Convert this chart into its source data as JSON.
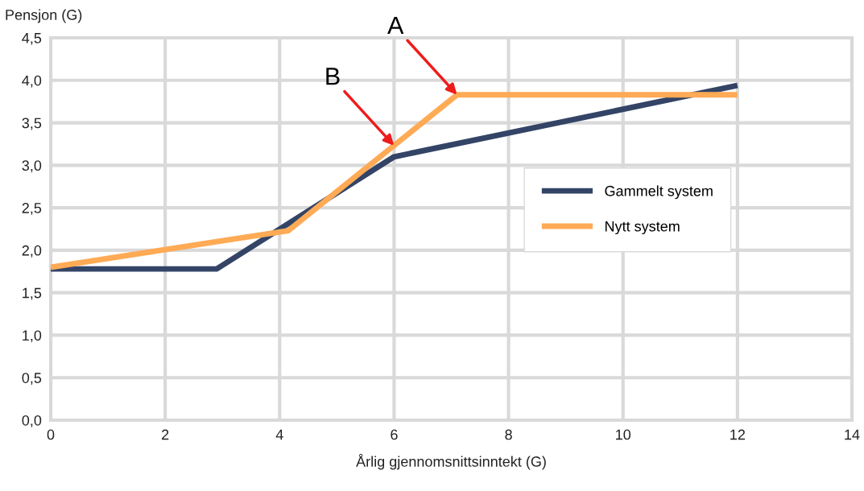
{
  "chart_data": {
    "type": "line",
    "xlabel": "Årlig gjennomsnittsinntekt (G)",
    "ylabel": "Pensjon (G)",
    "series": [
      {
        "name": "Gammelt system",
        "color": "#334466",
        "x": [
          0,
          2.9,
          6,
          12
        ],
        "values": [
          1.78,
          1.78,
          3.1,
          3.94
        ]
      },
      {
        "name": "Nytt system",
        "color": "#ffaa55",
        "x": [
          0,
          4.15,
          7.1,
          12
        ],
        "values": [
          1.8,
          2.23,
          3.83,
          3.83
        ]
      }
    ],
    "xlim": [
      0,
      14
    ],
    "xticks": [
      0,
      2,
      4,
      6,
      8,
      10,
      12,
      14
    ],
    "ylim": [
      0,
      4.5
    ],
    "yticks": [
      {
        "value": 0,
        "label": "0,0"
      },
      {
        "value": 0.5,
        "label": "0,5"
      },
      {
        "value": 1,
        "label": "1,0"
      },
      {
        "value": 1.5,
        "label": "1,5"
      },
      {
        "value": 2,
        "label": "2,0"
      },
      {
        "value": 2.5,
        "label": "2,5"
      },
      {
        "value": 3,
        "label": "3,0"
      },
      {
        "value": 3.5,
        "label": "3,5"
      },
      {
        "value": 4,
        "label": "4,0"
      },
      {
        "value": 4.5,
        "label": "4,5"
      }
    ],
    "annotations": [
      {
        "text": "A",
        "x": 7.1,
        "y": 3.83
      },
      {
        "text": "B",
        "x": 6.0,
        "y": 3.23
      }
    ],
    "grid": true,
    "legend": "center right",
    "line_style": "solid",
    "marker": "none"
  }
}
